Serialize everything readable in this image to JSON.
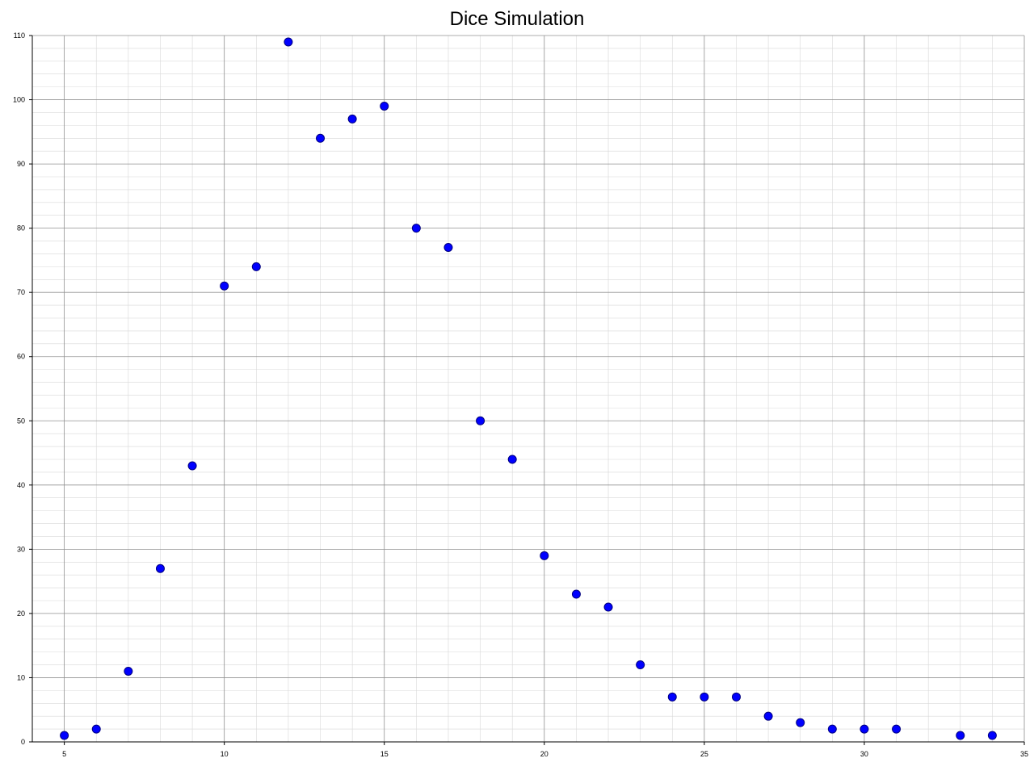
{
  "chart_data": {
    "type": "scatter",
    "title": "Dice Simulation",
    "xlabel": "",
    "ylabel": "",
    "xlim": [
      4,
      35
    ],
    "ylim": [
      0,
      110
    ],
    "x_ticks": [
      5,
      10,
      15,
      20,
      25,
      30,
      35
    ],
    "y_ticks": [
      0,
      10,
      20,
      30,
      40,
      50,
      60,
      70,
      80,
      90,
      100,
      110
    ],
    "grid": true,
    "legend": "none",
    "marker_color": "#0000ff",
    "marker_edge_color": "#000080",
    "points": [
      {
        "x": 5,
        "y": 1
      },
      {
        "x": 6,
        "y": 2
      },
      {
        "x": 7,
        "y": 11
      },
      {
        "x": 8,
        "y": 27
      },
      {
        "x": 9,
        "y": 43
      },
      {
        "x": 10,
        "y": 71
      },
      {
        "x": 11,
        "y": 74
      },
      {
        "x": 12,
        "y": 109
      },
      {
        "x": 13,
        "y": 94
      },
      {
        "x": 14,
        "y": 97
      },
      {
        "x": 15,
        "y": 99
      },
      {
        "x": 16,
        "y": 80
      },
      {
        "x": 17,
        "y": 77
      },
      {
        "x": 18,
        "y": 50
      },
      {
        "x": 19,
        "y": 44
      },
      {
        "x": 20,
        "y": 29
      },
      {
        "x": 21,
        "y": 23
      },
      {
        "x": 22,
        "y": 21
      },
      {
        "x": 23,
        "y": 12
      },
      {
        "x": 24,
        "y": 7
      },
      {
        "x": 25,
        "y": 7
      },
      {
        "x": 26,
        "y": 7
      },
      {
        "x": 27,
        "y": 4
      },
      {
        "x": 28,
        "y": 3
      },
      {
        "x": 29,
        "y": 2
      },
      {
        "x": 30,
        "y": 2
      },
      {
        "x": 31,
        "y": 2
      },
      {
        "x": 33,
        "y": 1
      },
      {
        "x": 34,
        "y": 1
      }
    ]
  }
}
